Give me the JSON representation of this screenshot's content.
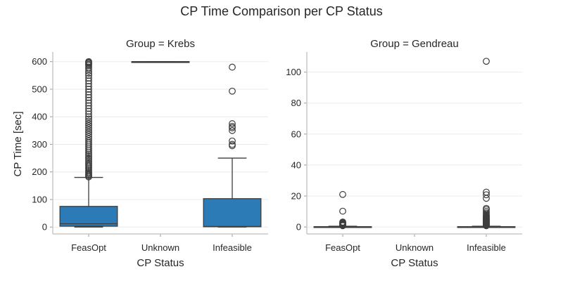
{
  "chart_data": {
    "type": "box",
    "title": "CP Time Comparison per CP Status",
    "color": "#2c7bb6",
    "panels": [
      {
        "title": "Group = Krebs",
        "xlabel": "CP Status",
        "ylabel": "CP Time [sec]",
        "categories": [
          "FeasOpt",
          "Unknown",
          "Infeasible"
        ],
        "ylim": [
          -25,
          635
        ],
        "yticks": [
          0,
          100,
          200,
          300,
          400,
          500,
          600
        ],
        "ytick_labels": [
          "0",
          "100",
          "200",
          "300",
          "400",
          "500",
          "600"
        ],
        "boxes": [
          {
            "category": "FeasOpt",
            "whislo": 0,
            "q1": 3,
            "med": 12,
            "q3": 75,
            "whishi": 180,
            "fliers": [
              182,
              186,
              190,
              194,
              198,
              203,
              208,
              213,
              218,
              223,
              228,
              234,
              240,
              246,
              252,
              258,
              264,
              270,
              277,
              284,
              291,
              298,
              305,
              312,
              320,
              328,
              336,
              344,
              352,
              360,
              368,
              376,
              384,
              392,
              400,
              410,
              420,
              430,
              440,
              450,
              460,
              470,
              480,
              490,
              500,
              510,
              520,
              530,
              540,
              550,
              558,
              566,
              574,
              580,
              586,
              590,
              594,
              597,
              600
            ]
          },
          {
            "category": "Unknown",
            "whislo": 600,
            "q1": 600,
            "med": 600,
            "q3": 600,
            "whishi": 600,
            "fliers": []
          },
          {
            "category": "Infeasible",
            "whislo": 0,
            "q1": 1,
            "med": 2,
            "q3": 103,
            "whishi": 250,
            "fliers": [
              295,
              300,
              312,
              350,
              360,
              365,
              375,
              493,
              580
            ]
          }
        ]
      },
      {
        "title": "Group = Gendreau",
        "xlabel": "CP Status",
        "ylabel": "",
        "categories": [
          "FeasOpt",
          "Unknown",
          "Infeasible"
        ],
        "ylim": [
          -4.5,
          113
        ],
        "yticks": [
          0,
          20,
          40,
          60,
          80,
          100
        ],
        "ytick_labels": [
          "0",
          "20",
          "40",
          "60",
          "80",
          "100"
        ],
        "boxes": [
          {
            "category": "FeasOpt",
            "whislo": 0,
            "q1": 0.05,
            "med": 0.1,
            "q3": 0.2,
            "whishi": 0.5,
            "fliers": [
              0.8,
              1.2,
              1.6,
              2.0,
              2.4,
              2.8,
              3.2,
              10.2,
              21
            ]
          },
          {
            "category": "Infeasible",
            "whislo": 0,
            "q1": 0.05,
            "med": 0.1,
            "q3": 0.2,
            "whishi": 0.5,
            "fliers": [
              0.8,
              1.1,
              1.4,
              1.7,
              2.0,
              2.3,
              2.6,
              2.9,
              3.2,
              3.5,
              3.8,
              4.1,
              4.4,
              4.7,
              5.0,
              5.4,
              5.8,
              6.2,
              6.6,
              7.0,
              7.5,
              8.0,
              9.0,
              10.0,
              11.2,
              12.0,
              18.5,
              20.8,
              22.5,
              107
            ]
          }
        ]
      }
    ]
  }
}
